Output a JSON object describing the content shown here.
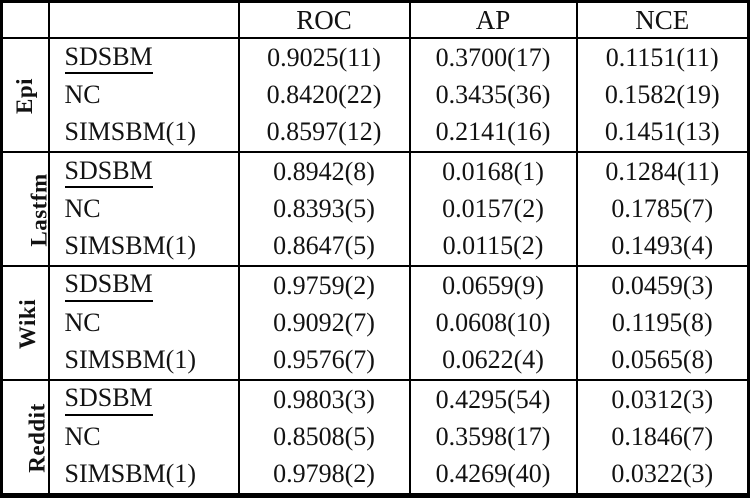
{
  "colors": {
    "background": "#ffffff",
    "border": "#000000",
    "text": "#121212"
  },
  "table": {
    "columns": [
      "ROC",
      "AP",
      "NCE"
    ],
    "groups": [
      {
        "label": "Epi",
        "rows": [
          {
            "method": "SDSBM",
            "underlined": true,
            "values": [
              "0.9025(11)",
              "0.3700(17)",
              "0.1151(11)"
            ]
          },
          {
            "method": "NC",
            "underlined": false,
            "values": [
              "0.8420(22)",
              "0.3435(36)",
              "0.1582(19)"
            ]
          },
          {
            "method": "SIMSBM(1)",
            "underlined": false,
            "values": [
              "0.8597(12)",
              "0.2141(16)",
              "0.1451(13)"
            ]
          }
        ]
      },
      {
        "label": "Lastfm",
        "rows": [
          {
            "method": "SDSBM",
            "underlined": true,
            "values": [
              "0.8942(8)",
              "0.0168(1)",
              "0.1284(11)"
            ]
          },
          {
            "method": "NC",
            "underlined": false,
            "values": [
              "0.8393(5)",
              "0.0157(2)",
              "0.1785(7)"
            ]
          },
          {
            "method": "SIMSBM(1)",
            "underlined": false,
            "values": [
              "0.8647(5)",
              "0.0115(2)",
              "0.1493(4)"
            ]
          }
        ]
      },
      {
        "label": "Wiki",
        "rows": [
          {
            "method": "SDSBM",
            "underlined": true,
            "values": [
              "0.9759(2)",
              "0.0659(9)",
              "0.0459(3)"
            ]
          },
          {
            "method": "NC",
            "underlined": false,
            "values": [
              "0.9092(7)",
              "0.0608(10)",
              "0.1195(8)"
            ]
          },
          {
            "method": "SIMSBM(1)",
            "underlined": false,
            "values": [
              "0.9576(7)",
              "0.0622(4)",
              "0.0565(8)"
            ]
          }
        ]
      },
      {
        "label": "Reddit",
        "rows": [
          {
            "method": "SDSBM",
            "underlined": true,
            "values": [
              "0.9803(3)",
              "0.4295(54)",
              "0.0312(3)"
            ]
          },
          {
            "method": "NC",
            "underlined": false,
            "values": [
              "0.8508(5)",
              "0.3598(17)",
              "0.1846(7)"
            ]
          },
          {
            "method": "SIMSBM(1)",
            "underlined": false,
            "values": [
              "0.9798(2)",
              "0.4269(40)",
              "0.0322(3)"
            ]
          }
        ]
      }
    ]
  }
}
